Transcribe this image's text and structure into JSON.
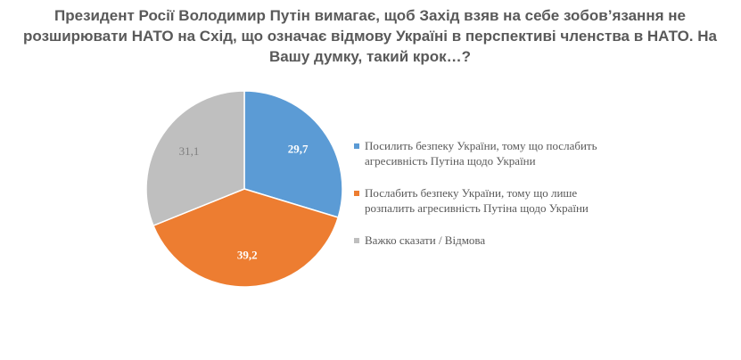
{
  "chart_data": {
    "type": "pie",
    "title": "Президент Росії Володимир Путін вимагає, щоб Захід взяв на себе зобов’язання не розширювати НАТО на Схід, що означає відмову Україні в перспективі членства в НАТО. На Вашу думку, такий крок…?",
    "series": [
      {
        "name": "Посилить безпеку України, тому що послабить агресивність Путіна щодо України",
        "value": 29.7,
        "label": "29,7",
        "color": "#5b9bd5"
      },
      {
        "name": "Послабить безпеку України, тому що лише розпалить агресивність Путіна щодо України",
        "value": 39.2,
        "label": "39,2",
        "color": "#ed7d31"
      },
      {
        "name": "Важко сказати / Відмова",
        "value": 31.1,
        "label": "31,1",
        "color": "#bfbfbf"
      }
    ],
    "legend_position": "right",
    "start": "top",
    "direction": "clockwise"
  }
}
